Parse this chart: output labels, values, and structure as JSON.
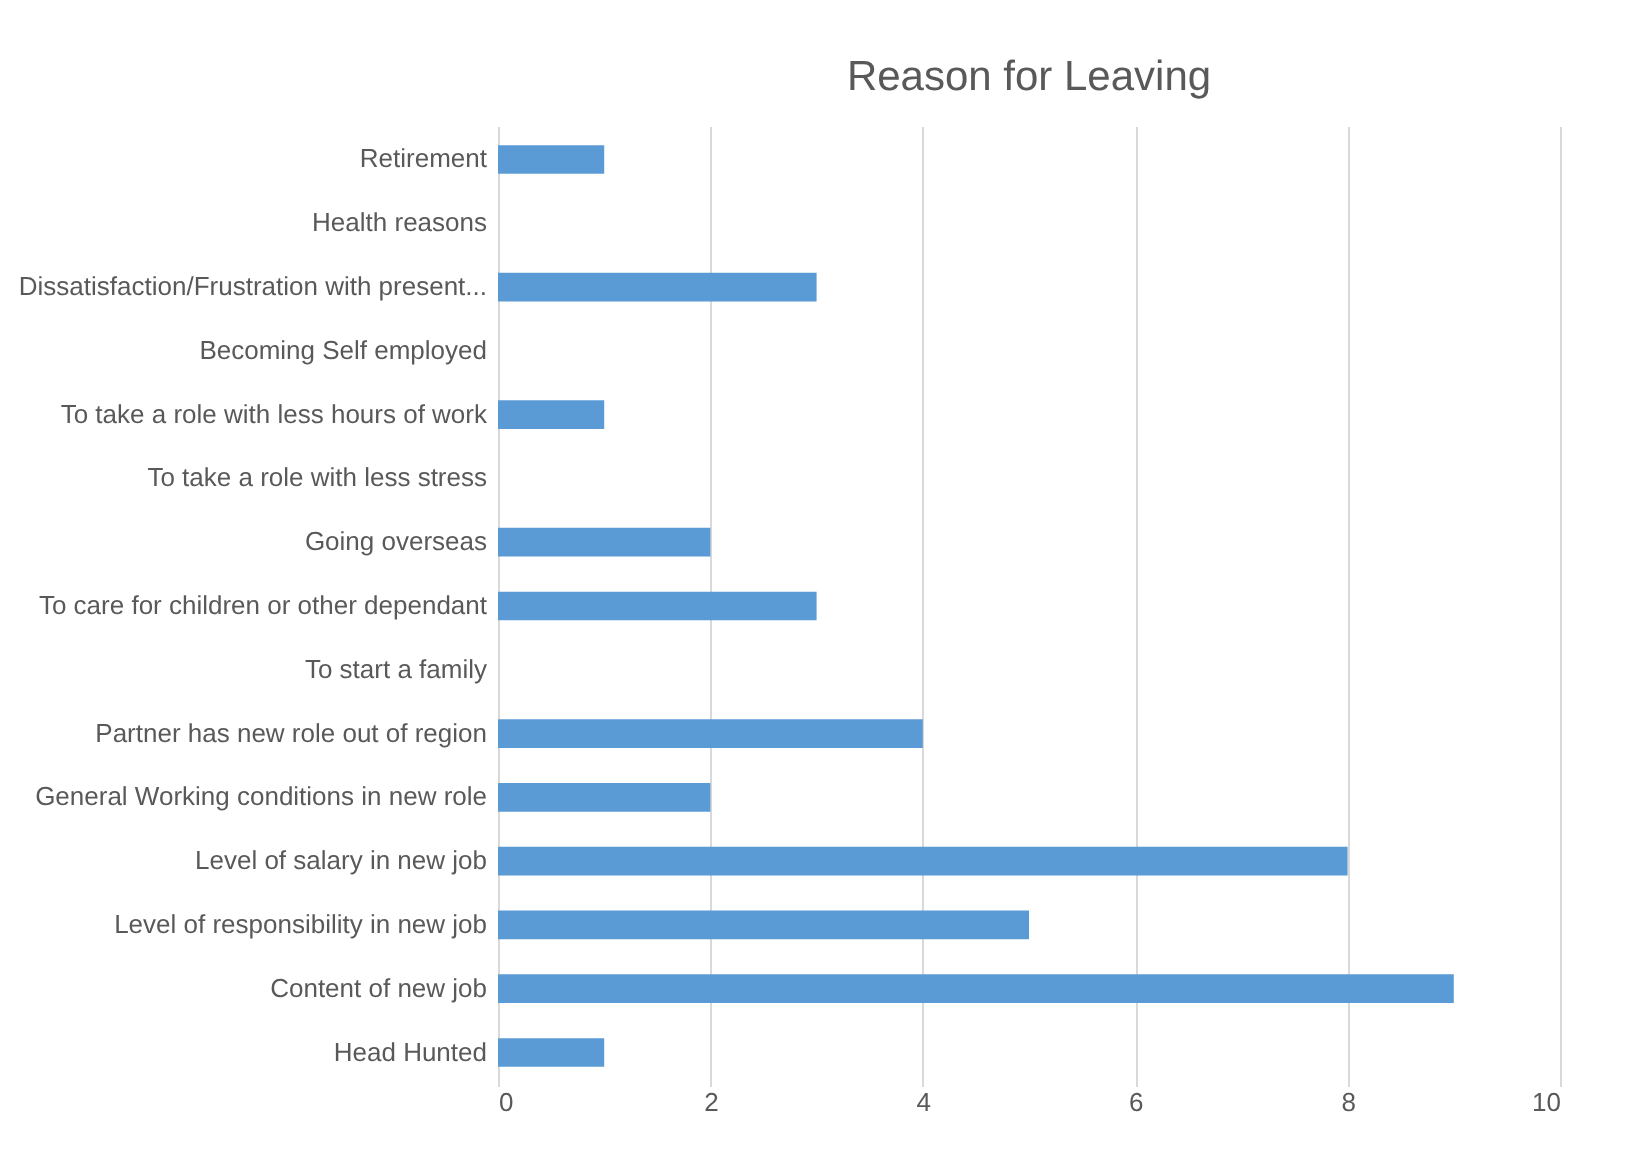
{
  "chart_data": {
    "type": "bar",
    "orientation": "horizontal",
    "title": "Reason for Leaving",
    "categories": [
      "Retirement",
      "Health reasons",
      "Dissatisfaction/Frustration with present...",
      "Becoming Self employed",
      "To take a role with less hours of work",
      "To take a role with less stress",
      "Going overseas",
      "To care for children or other dependant",
      "To start a family",
      "Partner has new role out of region",
      "General Working conditions in new role",
      "Level of salary in new job",
      "Level of responsibility in new job",
      "Content of new job",
      "Head Hunted"
    ],
    "values": [
      1,
      0,
      3,
      0,
      1,
      0,
      2,
      3,
      0,
      4,
      2,
      8,
      5,
      9,
      1
    ],
    "color": "#5b9bd5",
    "xlim": [
      0,
      10
    ],
    "xticks": [
      0,
      2,
      4,
      6,
      8,
      10
    ],
    "grid": "x"
  }
}
